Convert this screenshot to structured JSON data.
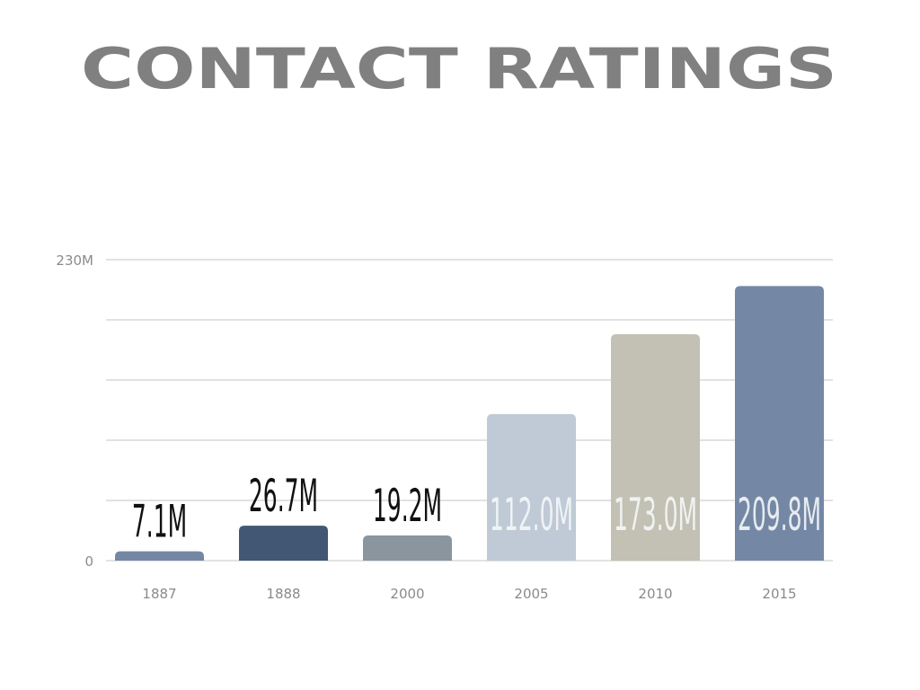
{
  "chart_data": {
    "type": "bar",
    "title": "CONTACT RATINGS",
    "xlabel": "",
    "ylabel": "",
    "categories": [
      "1887",
      "1888",
      "2000",
      "2005",
      "2010",
      "2015"
    ],
    "values": [
      7.1,
      26.7,
      19.2,
      112.0,
      173.0,
      209.8
    ],
    "data_labels": [
      "7.1M",
      "26.7M",
      "19.2M",
      "112.0M",
      "173.0M",
      "209.8M"
    ],
    "colors": [
      "#7487a3",
      "#415774",
      "#8a959e",
      "#bfcad6",
      "#c2c1b3",
      "#7488a5"
    ],
    "ylim": [
      0,
      230
    ],
    "yticks": [
      {
        "value": 0,
        "label": "0"
      },
      {
        "value": 230,
        "label": "230M"
      }
    ],
    "gridlines": [
      0,
      46,
      92,
      138,
      184,
      230
    ],
    "grid": true,
    "legend": "none",
    "title_color": "#808080"
  }
}
